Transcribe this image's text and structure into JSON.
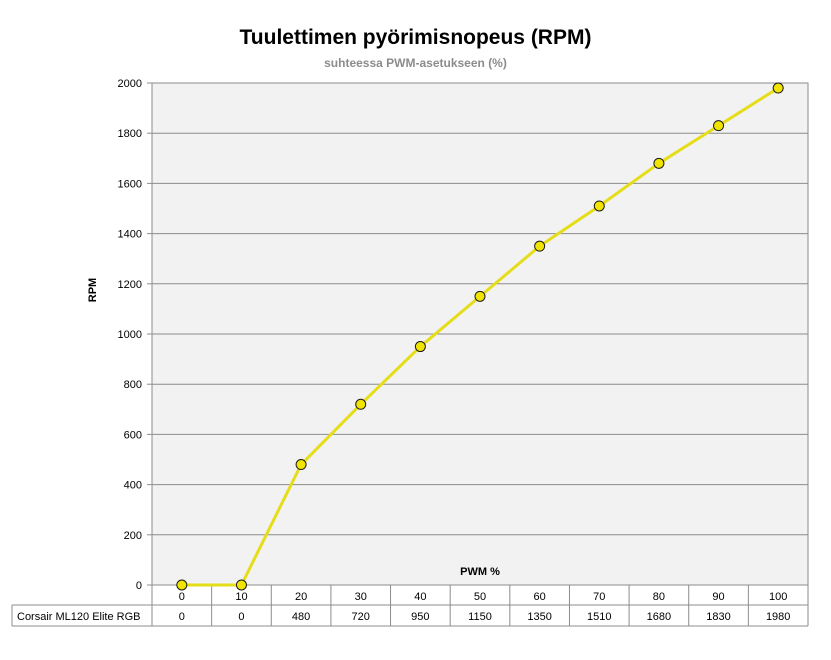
{
  "chart_data": {
    "type": "line",
    "title": "Tuulettimen pyörimisnopeus (RPM)",
    "subtitle": "suhteessa PWM-asetukseen (%)",
    "xlabel": "PWM %",
    "ylabel": "RPM",
    "x": [
      0,
      10,
      20,
      30,
      40,
      50,
      60,
      70,
      80,
      90,
      100
    ],
    "series": [
      {
        "name": "Corsair ML120 Elite RGB",
        "values": [
          0,
          0,
          480,
          720,
          950,
          1150,
          1350,
          1510,
          1680,
          1830,
          1980
        ]
      }
    ],
    "ylim": [
      0,
      2000
    ],
    "yticks": [
      0,
      200,
      400,
      600,
      800,
      1000,
      1200,
      1400,
      1600,
      1800,
      2000
    ],
    "grid": true,
    "data_table": true,
    "colors": {
      "line": "#e6dd19",
      "marker_fill": "#f0e400",
      "marker_stroke": "#1a1a1a",
      "plot_background": "#f2f2f2",
      "gridline": "#8c8c8c"
    }
  }
}
